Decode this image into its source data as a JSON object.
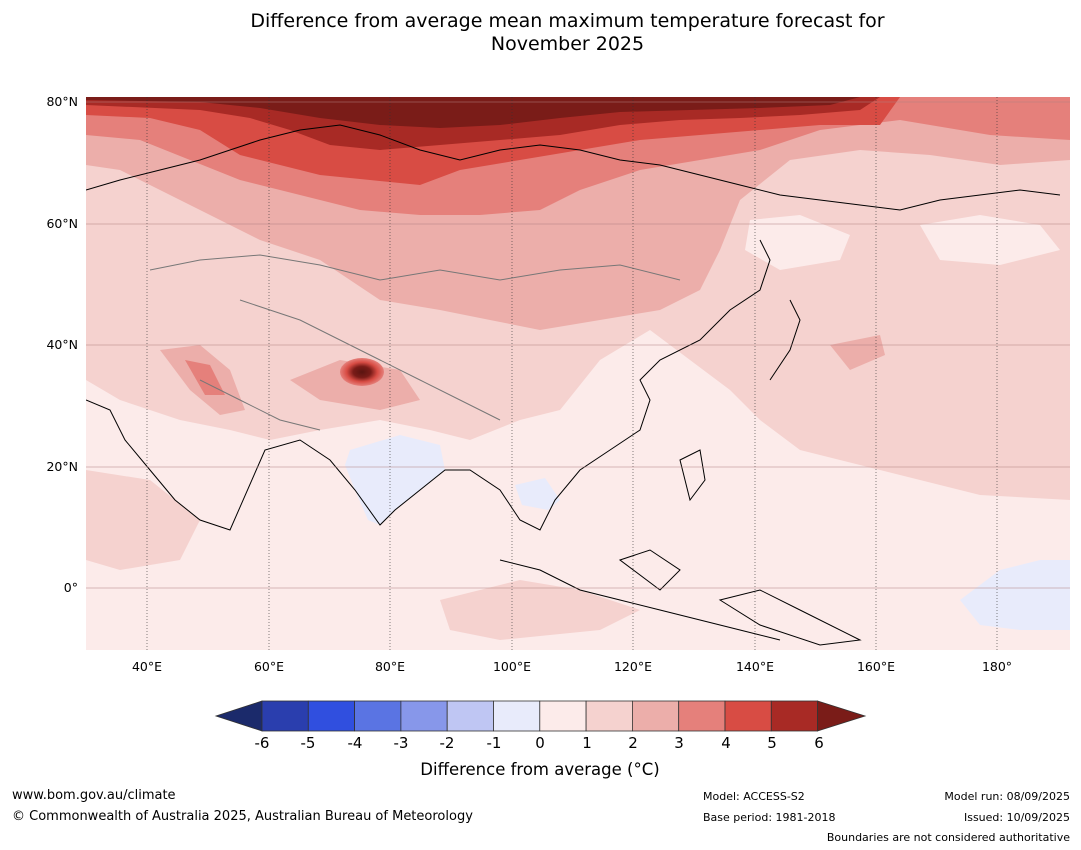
{
  "title_line1": "Difference from average mean maximum temperature forecast for",
  "title_line2": "November 2025",
  "map": {
    "region": "Asia",
    "lat_labels": [
      "80°N",
      "60°N",
      "40°N",
      "20°N",
      "0°"
    ],
    "lon_labels": [
      "40°E",
      "60°E",
      "80°E",
      "100°E",
      "120°E",
      "140°E",
      "160°E",
      "180°"
    ]
  },
  "legend": {
    "title": "Difference from average (°C)",
    "tick_labels": [
      "-6",
      "-5",
      "-4",
      "-3",
      "-2",
      "-1",
      "0",
      "1",
      "2",
      "3",
      "4",
      "5",
      "6"
    ],
    "colors": {
      "below_-6": "#1b2a6b",
      "-6_to_-5": "#2a3eae",
      "-5_to_-4": "#304fdf",
      "-4_to_-3": "#5a74e3",
      "-3_to_-2": "#8797ea",
      "-2_to_-1": "#bfc6f3",
      "-1_to_0": "#e8ebfb",
      "0_to_1": "#fcebea",
      "1_to_2": "#f5d2cf",
      "2_to_3": "#ecaeaa",
      "3_to_4": "#e5807b",
      "4_to_5": "#d84c44",
      "5_to_6": "#a82a25",
      "above_6": "#7a1c18"
    }
  },
  "footer": {
    "website": "www.bom.gov.au/climate",
    "copyright": "© Commonwealth of Australia 2025, Australian Bureau of Meteorology",
    "model": "Model: ACCESS-S2",
    "base_period": "Base period: 1981-2018",
    "model_run": "Model run: 08/09/2025",
    "issued": "Issued: 10/09/2025",
    "disclaimer": "Boundaries are not considered authoritative"
  }
}
